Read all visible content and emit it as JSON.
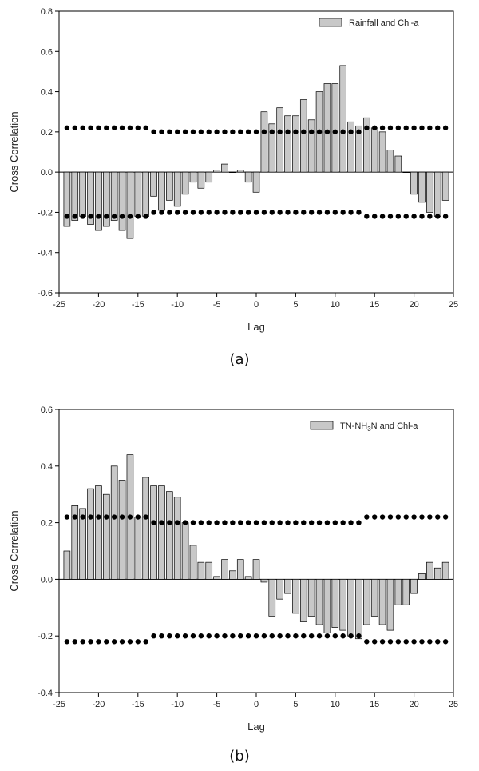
{
  "chart_data": [
    {
      "type": "bar",
      "panel": "a",
      "caption": "(a)",
      "xlabel": "Lag",
      "ylabel": "Cross Correlation",
      "xlim": [
        -25,
        25
      ],
      "ylim": [
        -0.6,
        0.8
      ],
      "xticks": [
        -25,
        -20,
        -15,
        -10,
        -5,
        0,
        5,
        10,
        15,
        20,
        25
      ],
      "xtick_labels": [
        "-25",
        "-20",
        "-15",
        "-10",
        "-5",
        "0",
        "5",
        "10",
        "15",
        "20",
        "25"
      ],
      "yticks": [
        -0.6,
        -0.4,
        -0.2,
        0.0,
        0.2,
        0.4,
        0.6,
        0.8
      ],
      "ytick_labels": [
        "-0.6",
        "-0.4",
        "-0.2",
        "0.0",
        "0.2",
        "0.4",
        "0.6",
        "0.8"
      ],
      "legend": {
        "label_prefix": "Rainfall and Chl-a",
        "sub": "",
        "label_suffix": "",
        "placement": "top-right"
      },
      "lags": [
        -24,
        -23,
        -22,
        -21,
        -20,
        -19,
        -18,
        -17,
        -16,
        -15,
        -14,
        -13,
        -12,
        -11,
        -10,
        -9,
        -8,
        -7,
        -6,
        -5,
        -4,
        -3,
        -2,
        -1,
        0,
        1,
        2,
        3,
        4,
        5,
        6,
        7,
        8,
        9,
        10,
        11,
        12,
        13,
        14,
        15,
        16,
        17,
        18,
        19,
        20,
        21,
        22,
        23,
        24
      ],
      "values": [
        -0.27,
        -0.24,
        -0.22,
        -0.26,
        -0.29,
        -0.27,
        -0.24,
        -0.29,
        -0.33,
        -0.22,
        -0.22,
        -0.12,
        -0.19,
        -0.14,
        -0.17,
        -0.11,
        -0.05,
        -0.08,
        -0.05,
        0.01,
        0.04,
        0.0,
        0.01,
        -0.05,
        -0.1,
        0.3,
        0.24,
        0.32,
        0.28,
        0.28,
        0.36,
        0.26,
        0.4,
        0.44,
        0.44,
        0.53,
        0.25,
        0.23,
        0.27,
        0.22,
        0.2,
        0.11,
        0.08,
        0.0,
        -0.11,
        -0.15,
        -0.2,
        -0.22,
        -0.14
      ],
      "upper_limit": [
        0.22,
        0.22,
        0.22,
        0.22,
        0.22,
        0.22,
        0.22,
        0.22,
        0.22,
        0.22,
        0.22,
        0.2,
        0.2,
        0.2,
        0.2,
        0.2,
        0.2,
        0.2,
        0.2,
        0.2,
        0.2,
        0.2,
        0.2,
        0.2,
        0.2,
        0.2,
        0.2,
        0.2,
        0.2,
        0.2,
        0.2,
        0.2,
        0.2,
        0.2,
        0.2,
        0.2,
        0.2,
        0.2,
        0.22,
        0.22,
        0.22,
        0.22,
        0.22,
        0.22,
        0.22,
        0.22,
        0.22,
        0.22,
        0.22
      ],
      "lower_limit": [
        -0.22,
        -0.22,
        -0.22,
        -0.22,
        -0.22,
        -0.22,
        -0.22,
        -0.22,
        -0.22,
        -0.22,
        -0.22,
        -0.2,
        -0.2,
        -0.2,
        -0.2,
        -0.2,
        -0.2,
        -0.2,
        -0.2,
        -0.2,
        -0.2,
        -0.2,
        -0.2,
        -0.2,
        -0.2,
        -0.2,
        -0.2,
        -0.2,
        -0.2,
        -0.2,
        -0.2,
        -0.2,
        -0.2,
        -0.2,
        -0.2,
        -0.2,
        -0.2,
        -0.2,
        -0.22,
        -0.22,
        -0.22,
        -0.22,
        -0.22,
        -0.22,
        -0.22,
        -0.22,
        -0.22,
        -0.22,
        -0.22
      ],
      "bar_color": "#c8c8c8",
      "marker_color": "#000000"
    },
    {
      "type": "bar",
      "panel": "b",
      "caption": "(b)",
      "xlabel": "Lag",
      "ylabel": "Cross Correlation",
      "xlim": [
        -25,
        25
      ],
      "ylim": [
        -0.4,
        0.6
      ],
      "xticks": [
        -25,
        -20,
        -15,
        -10,
        -5,
        0,
        5,
        10,
        15,
        20,
        25
      ],
      "xtick_labels": [
        "-25",
        "-20",
        "-15",
        "-10",
        "-5",
        "0",
        "5",
        "10",
        "15",
        "20",
        "25"
      ],
      "yticks": [
        -0.4,
        -0.2,
        0.0,
        0.2,
        0.4,
        0.6
      ],
      "ytick_labels": [
        "-0.4",
        "-0.2",
        "0.0",
        "0.2",
        "0.4",
        "0.6"
      ],
      "legend": {
        "label_prefix": "TN-NH",
        "sub": "3",
        "label_suffix": "N and Chl-a",
        "placement": "top-right"
      },
      "lags": [
        -24,
        -23,
        -22,
        -21,
        -20,
        -19,
        -18,
        -17,
        -16,
        -15,
        -14,
        -13,
        -12,
        -11,
        -10,
        -9,
        -8,
        -7,
        -6,
        -5,
        -4,
        -3,
        -2,
        -1,
        0,
        1,
        2,
        3,
        4,
        5,
        6,
        7,
        8,
        9,
        10,
        11,
        12,
        13,
        14,
        15,
        16,
        17,
        18,
        19,
        20,
        21,
        22,
        23,
        24
      ],
      "values": [
        0.1,
        0.26,
        0.25,
        0.32,
        0.33,
        0.3,
        0.4,
        0.35,
        0.44,
        0.22,
        0.36,
        0.33,
        0.33,
        0.31,
        0.29,
        0.2,
        0.12,
        0.06,
        0.06,
        0.01,
        0.07,
        0.03,
        0.07,
        0.01,
        0.07,
        -0.01,
        -0.13,
        -0.07,
        -0.05,
        -0.12,
        -0.15,
        -0.13,
        -0.16,
        -0.19,
        -0.17,
        -0.18,
        -0.2,
        -0.21,
        -0.16,
        -0.13,
        -0.16,
        -0.18,
        -0.09,
        -0.09,
        -0.05,
        0.02,
        0.06,
        0.04,
        0.06
      ],
      "upper_limit": [
        0.22,
        0.22,
        0.22,
        0.22,
        0.22,
        0.22,
        0.22,
        0.22,
        0.22,
        0.22,
        0.22,
        0.2,
        0.2,
        0.2,
        0.2,
        0.2,
        0.2,
        0.2,
        0.2,
        0.2,
        0.2,
        0.2,
        0.2,
        0.2,
        0.2,
        0.2,
        0.2,
        0.2,
        0.2,
        0.2,
        0.2,
        0.2,
        0.2,
        0.2,
        0.2,
        0.2,
        0.2,
        0.2,
        0.22,
        0.22,
        0.22,
        0.22,
        0.22,
        0.22,
        0.22,
        0.22,
        0.22,
        0.22,
        0.22
      ],
      "lower_limit": [
        -0.22,
        -0.22,
        -0.22,
        -0.22,
        -0.22,
        -0.22,
        -0.22,
        -0.22,
        -0.22,
        -0.22,
        -0.22,
        -0.2,
        -0.2,
        -0.2,
        -0.2,
        -0.2,
        -0.2,
        -0.2,
        -0.2,
        -0.2,
        -0.2,
        -0.2,
        -0.2,
        -0.2,
        -0.2,
        -0.2,
        -0.2,
        -0.2,
        -0.2,
        -0.2,
        -0.2,
        -0.2,
        -0.2,
        -0.2,
        -0.2,
        -0.2,
        -0.2,
        -0.2,
        -0.22,
        -0.22,
        -0.22,
        -0.22,
        -0.22,
        -0.22,
        -0.22,
        -0.22,
        -0.22,
        -0.22,
        -0.22
      ],
      "bar_color": "#c8c8c8",
      "marker_color": "#000000"
    }
  ]
}
